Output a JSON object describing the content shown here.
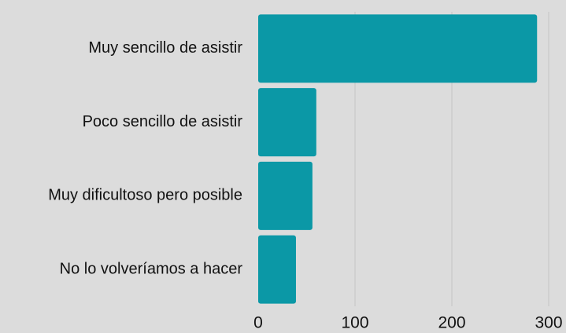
{
  "chart_data": {
    "type": "bar",
    "orientation": "horizontal",
    "categories": [
      "Muy sencillo de asistir",
      "Poco sencillo de asistir",
      "Muy dificultoso pero posible",
      "No lo volveríamos a hacer"
    ],
    "values": [
      288,
      60,
      56,
      39
    ],
    "color": "#0b98a6",
    "xlim": [
      0,
      300
    ],
    "xticks": [
      0,
      100,
      200,
      300
    ],
    "grid": true
  }
}
